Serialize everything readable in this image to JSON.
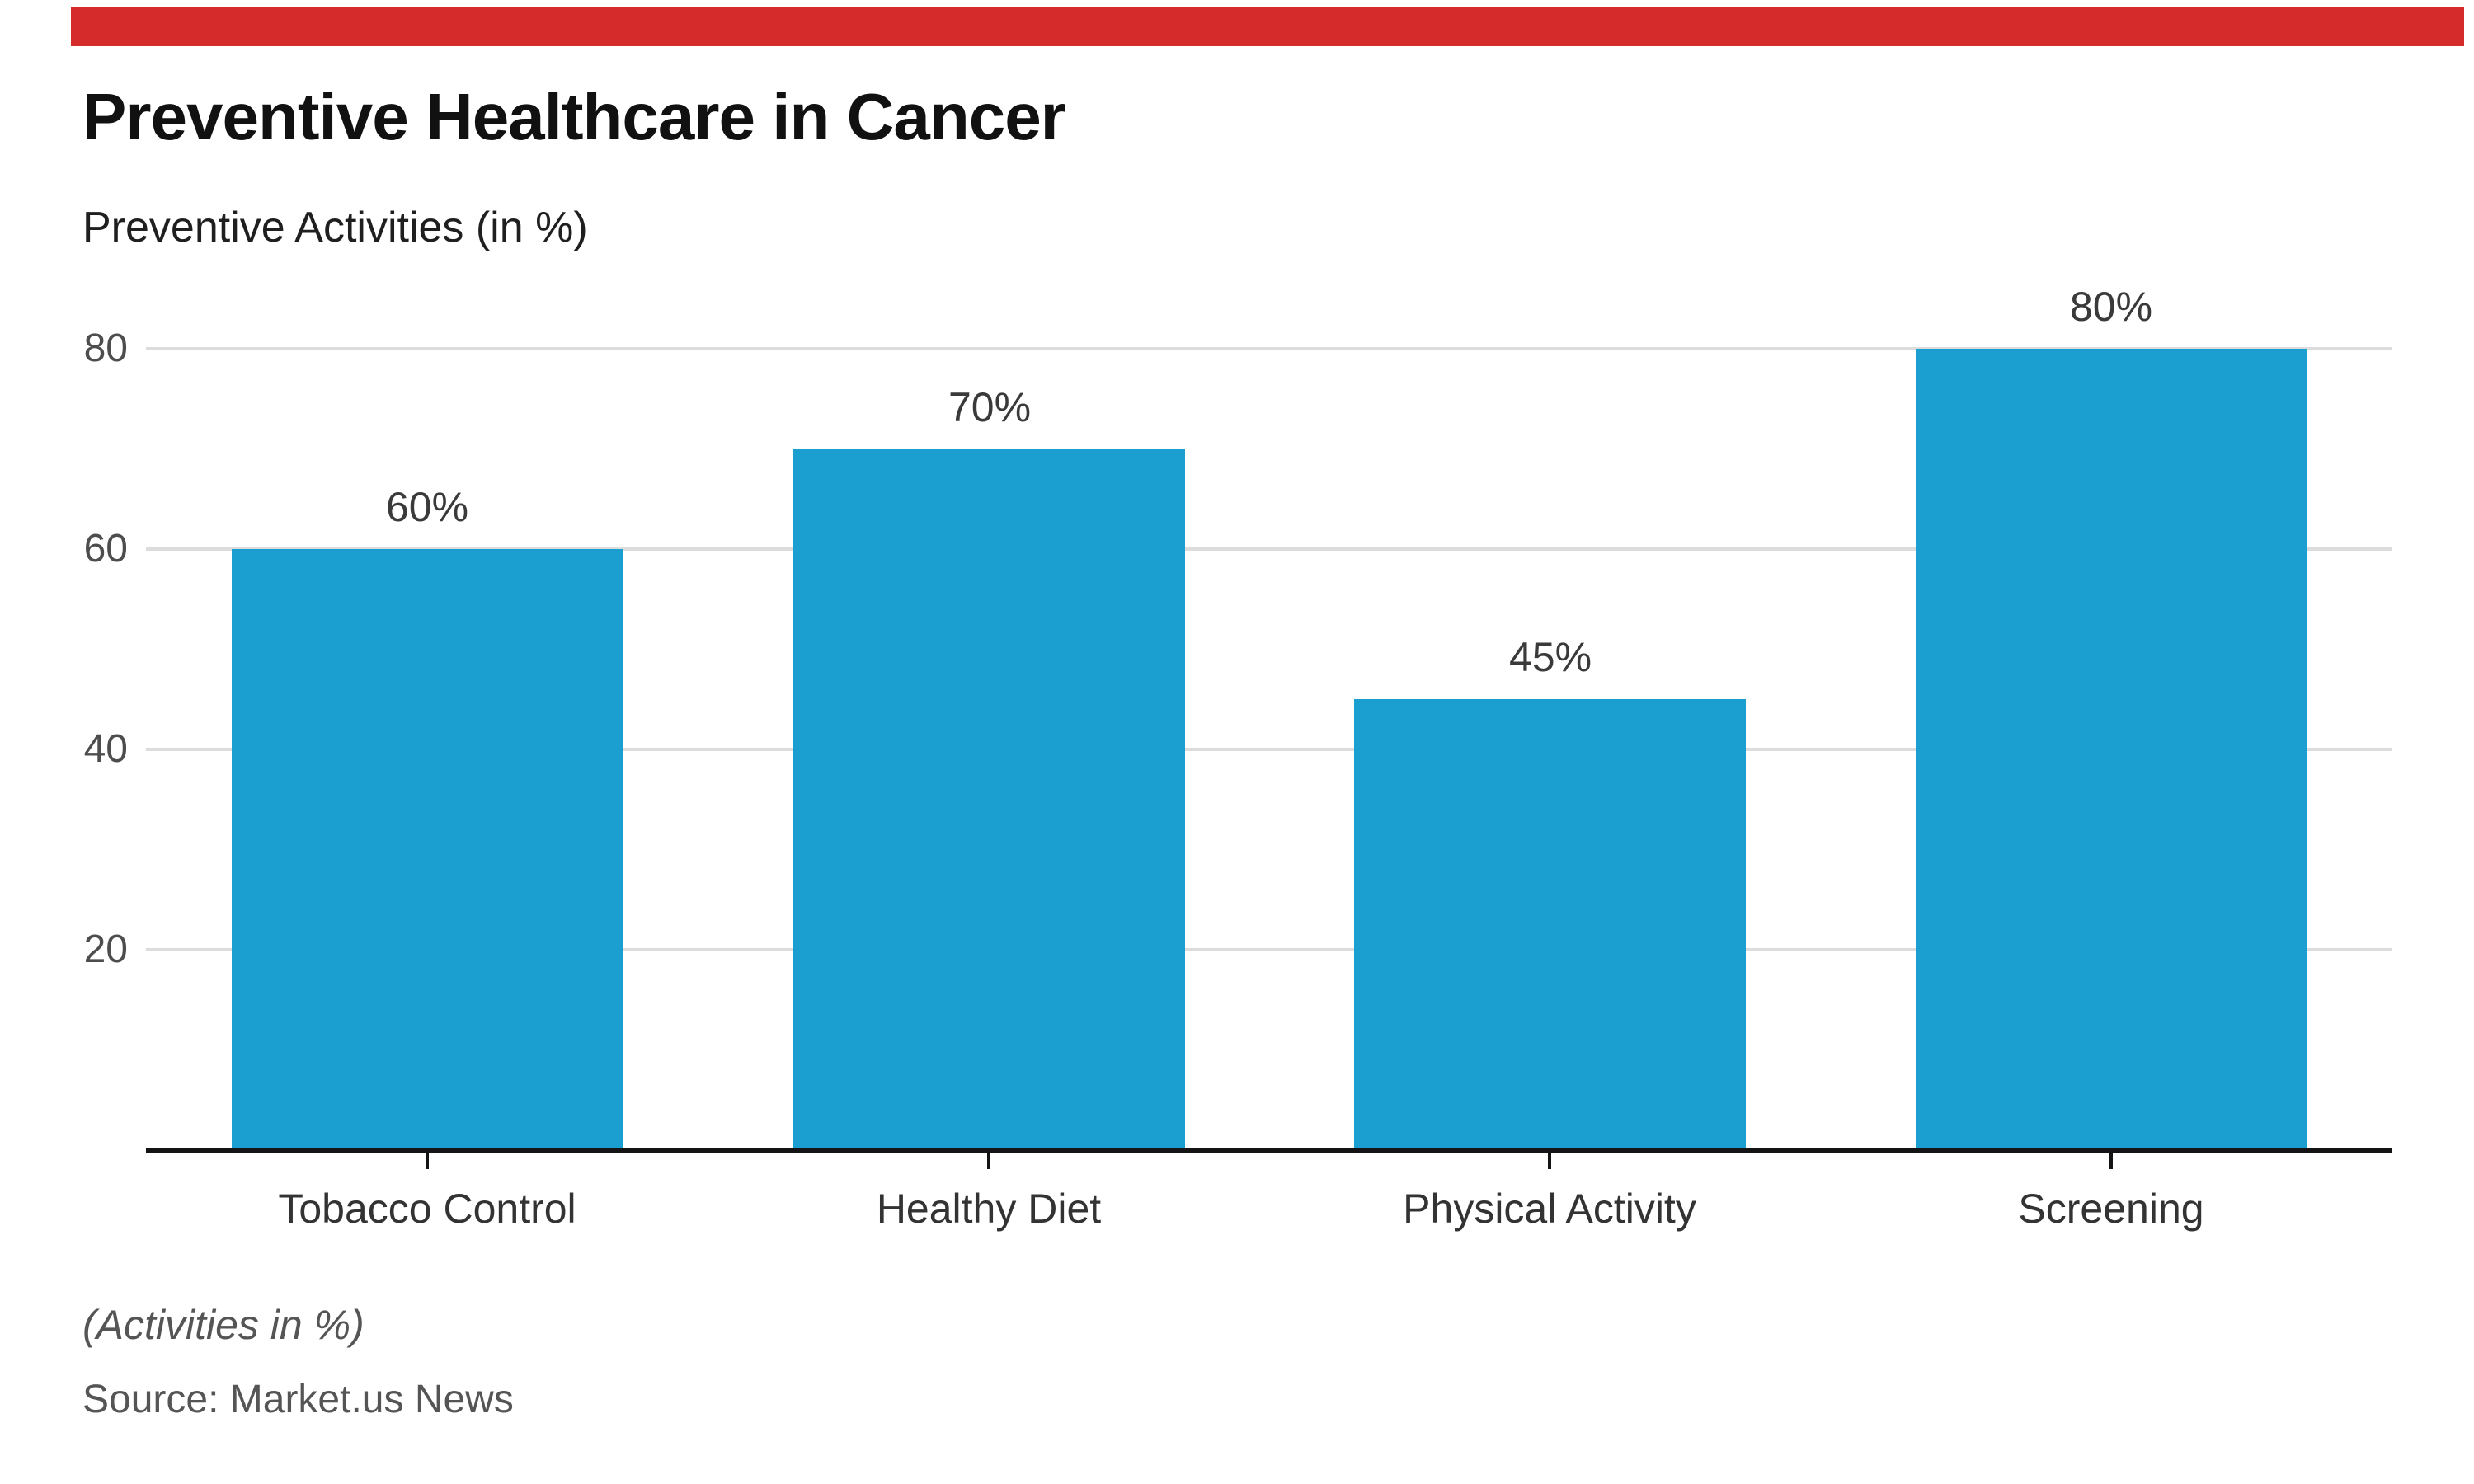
{
  "page": {
    "background_color": "#ffffff",
    "top_bar_color": "#d62b2b"
  },
  "header": {
    "title": "Preventive Healthcare in Cancer",
    "subtitle": "Preventive Activities (in %)"
  },
  "footer": {
    "note": "(Activities in %)",
    "source": "Source: Market.us News"
  },
  "chart_data": {
    "type": "bar",
    "title": "Preventive Healthcare in Cancer",
    "subtitle": "Preventive Activities (in %)",
    "categories": [
      "Tobacco Control",
      "Healthy Diet",
      "Physical Activity",
      "Screening"
    ],
    "values": [
      60,
      70,
      45,
      80
    ],
    "value_labels": [
      "60%",
      "70%",
      "45%",
      "80%"
    ],
    "ylabel": "",
    "xlabel": "",
    "ylim": [
      0,
      82
    ],
    "yticks": [
      20,
      40,
      60,
      80
    ],
    "ytick_labels": [
      "20",
      "40",
      "60",
      "80"
    ],
    "grid": "horizontal",
    "gridline_color": "#dcdcdc",
    "legend": "none",
    "bar_color": "#1b9fd0",
    "axis_color": "#141414",
    "footnote": "(Activities in %)",
    "source": "Source: Market.us News"
  }
}
